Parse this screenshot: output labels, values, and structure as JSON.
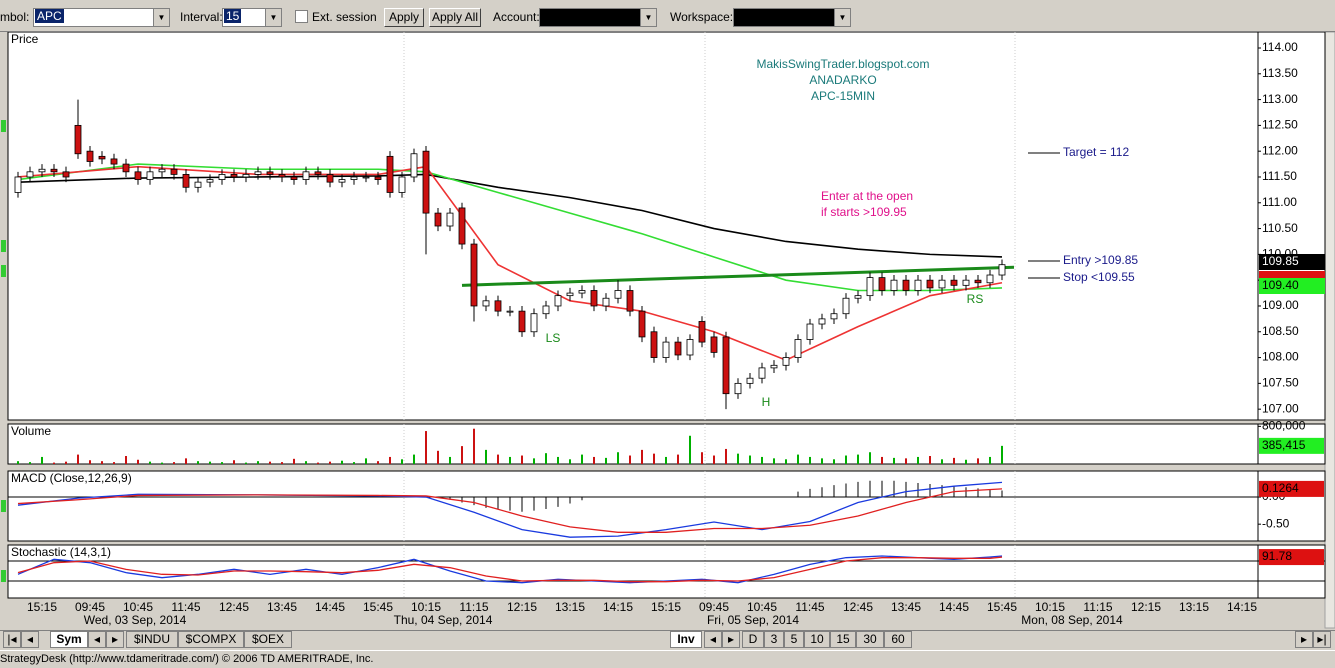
{
  "toolbar": {
    "symbol_label": "mbol:",
    "symbol": "APC",
    "interval_label": "Interval:",
    "interval": "15",
    "ext_session": "Ext. session",
    "apply": "Apply",
    "apply_all": "Apply All",
    "account_label": "Account:",
    "workspace_label": "Workspace:"
  },
  "chart_data": [
    {
      "type": "candlestick",
      "title": "Price",
      "open": [
        111.2,
        111.5,
        111.6,
        111.65,
        111.6,
        112.5,
        112.0,
        111.9,
        111.85,
        111.75,
        111.6,
        111.45,
        111.6,
        111.65,
        111.55,
        111.3,
        111.4,
        111.45,
        111.55,
        111.5,
        111.55,
        111.6,
        111.55,
        111.5,
        111.45,
        111.6,
        111.55,
        111.4,
        111.45,
        111.5,
        111.5,
        111.9,
        111.2,
        111.5,
        112.0,
        110.8,
        110.55,
        110.9,
        110.2,
        109.0,
        109.1,
        108.9,
        108.9,
        108.5,
        108.85,
        109.0,
        109.2,
        109.25,
        109.3,
        109.0,
        109.15,
        109.3,
        108.9,
        108.5,
        108.0,
        108.3,
        108.05,
        108.7,
        108.4,
        108.4,
        107.3,
        107.5,
        107.6,
        107.8,
        107.85,
        108.0,
        108.35,
        108.65,
        108.75,
        108.85,
        109.15,
        109.2,
        109.55,
        109.3,
        109.5,
        109.3,
        109.5,
        109.35,
        109.5,
        109.4,
        109.5,
        109.45,
        109.6
      ],
      "high": [
        111.6,
        111.7,
        111.75,
        111.75,
        111.7,
        113.0,
        112.1,
        112.0,
        111.95,
        111.85,
        111.7,
        111.7,
        111.75,
        111.75,
        111.65,
        111.5,
        111.55,
        111.65,
        111.65,
        111.65,
        111.7,
        111.7,
        111.65,
        111.6,
        111.7,
        111.7,
        111.65,
        111.55,
        111.6,
        111.6,
        111.6,
        112.0,
        111.6,
        112.05,
        112.1,
        110.9,
        110.9,
        111.0,
        110.3,
        109.2,
        109.2,
        109.0,
        109.0,
        108.95,
        109.1,
        109.3,
        109.35,
        109.4,
        109.4,
        109.25,
        109.5,
        109.4,
        109.0,
        108.6,
        108.4,
        108.4,
        108.45,
        108.8,
        108.5,
        108.5,
        107.6,
        107.7,
        107.9,
        107.95,
        108.1,
        108.45,
        108.75,
        108.85,
        108.95,
        109.25,
        109.3,
        109.65,
        109.65,
        109.6,
        109.6,
        109.6,
        109.6,
        109.6,
        109.6,
        109.6,
        109.6,
        109.7,
        109.9
      ],
      "low": [
        111.1,
        111.4,
        111.5,
        111.5,
        111.4,
        111.85,
        111.7,
        111.75,
        111.65,
        111.5,
        111.35,
        111.35,
        111.5,
        111.45,
        111.2,
        111.2,
        111.3,
        111.35,
        111.4,
        111.4,
        111.45,
        111.45,
        111.4,
        111.35,
        111.35,
        111.45,
        111.3,
        111.3,
        111.35,
        111.4,
        111.35,
        111.1,
        111.1,
        111.4,
        110.0,
        110.45,
        110.45,
        110.1,
        108.7,
        108.9,
        108.8,
        108.8,
        108.4,
        108.4,
        108.75,
        108.9,
        109.1,
        109.15,
        108.9,
        108.9,
        109.05,
        108.8,
        108.3,
        107.9,
        107.9,
        107.95,
        107.95,
        108.2,
        108.0,
        107.0,
        107.2,
        107.4,
        107.5,
        107.7,
        107.75,
        107.9,
        108.25,
        108.55,
        108.65,
        108.75,
        109.05,
        109.1,
        109.2,
        109.2,
        109.2,
        109.2,
        109.25,
        109.25,
        109.3,
        109.3,
        109.35,
        109.35,
        109.5
      ],
      "close": [
        111.5,
        111.6,
        111.65,
        111.6,
        111.5,
        111.95,
        111.8,
        111.85,
        111.75,
        111.6,
        111.45,
        111.6,
        111.65,
        111.55,
        111.3,
        111.4,
        111.45,
        111.55,
        111.5,
        111.55,
        111.6,
        111.55,
        111.5,
        111.45,
        111.6,
        111.55,
        111.4,
        111.45,
        111.5,
        111.5,
        111.45,
        111.2,
        111.5,
        111.95,
        110.8,
        110.55,
        110.8,
        110.2,
        109.0,
        109.1,
        108.9,
        108.9,
        108.5,
        108.85,
        109.0,
        109.2,
        109.25,
        109.3,
        109.0,
        109.15,
        109.3,
        108.9,
        108.4,
        108.0,
        108.3,
        108.05,
        108.35,
        108.3,
        108.1,
        107.3,
        107.5,
        107.6,
        107.8,
        107.85,
        108.0,
        108.35,
        108.65,
        108.75,
        108.85,
        109.15,
        109.2,
        109.55,
        109.3,
        109.5,
        109.3,
        109.5,
        109.35,
        109.5,
        109.4,
        109.5,
        109.45,
        109.6,
        109.8
      ],
      "up_color": "#ffffff",
      "down_color": "#cc1111",
      "overlays": [
        {
          "color": "#000000",
          "x": [
            0,
            10,
            20,
            30,
            34,
            40,
            46,
            52,
            58,
            64,
            70,
            76,
            82
          ],
          "values": [
            111.4,
            111.48,
            111.5,
            111.52,
            111.55,
            111.3,
            111.1,
            110.85,
            110.5,
            110.25,
            110.1,
            110.0,
            109.95
          ]
        },
        {
          "color": "#33dd33",
          "x": [
            0,
            10,
            20,
            30,
            34,
            40,
            46,
            52,
            58,
            64,
            70,
            76,
            82
          ],
          "values": [
            111.45,
            111.75,
            111.65,
            111.65,
            111.6,
            111.2,
            110.8,
            110.4,
            109.95,
            109.5,
            109.3,
            109.3,
            109.35
          ]
        },
        {
          "color": "#ee3333",
          "x": [
            0,
            10,
            20,
            30,
            34,
            40,
            46,
            52,
            58,
            64,
            70,
            76,
            82
          ],
          "values": [
            111.5,
            111.7,
            111.55,
            111.55,
            111.7,
            109.8,
            109.1,
            108.9,
            108.5,
            107.95,
            108.6,
            109.2,
            109.45
          ]
        }
      ],
      "neckline": {
        "color": "#1a8a1a",
        "x": [
          37,
          83
        ],
        "values": [
          109.4,
          109.75
        ]
      },
      "ylim": [
        106.79,
        114.31
      ],
      "yticks": [
        {
          "value": 107,
          "label": "107.00"
        },
        {
          "value": 107.5,
          "label": "107.50"
        },
        {
          "value": 108,
          "label": "108.00"
        },
        {
          "value": 108.5,
          "label": "108.50"
        },
        {
          "value": 109,
          "label": "109.00"
        },
        {
          "value": 109.5,
          "label": "109.50"
        },
        {
          "value": 110,
          "label": "110.00"
        },
        {
          "value": 110.5,
          "label": "110.50"
        },
        {
          "value": 111,
          "label": "111.00"
        },
        {
          "value": 111.5,
          "label": "111.50"
        },
        {
          "value": 112,
          "label": "112.00"
        },
        {
          "value": 112.5,
          "label": "112.50"
        },
        {
          "value": 113,
          "label": "113.00"
        },
        {
          "value": 113.5,
          "label": "113.50"
        },
        {
          "value": 114,
          "label": "114.00"
        }
      ],
      "annotations": {
        "blog": "MakisSwingTrader.blogspot.com",
        "company": "ANADARKO",
        "chart_id": "APC-15MIN",
        "enter_1": "Enter at the open",
        "enter_2": "if starts >109.95",
        "target": "Target = 112",
        "entry": "Entry >109.85",
        "stop": "Stop <109.55",
        "ls": "LS",
        "h": "H",
        "rs": "RS"
      },
      "price_labels": [
        "109.85",
        "109.40"
      ]
    },
    {
      "type": "volume",
      "title": "Volume",
      "values": [
        60000,
        40000,
        150000,
        30000,
        50000,
        200000,
        80000,
        60000,
        40000,
        170000,
        90000,
        50000,
        30000,
        40000,
        120000,
        60000,
        50000,
        40000,
        80000,
        30000,
        60000,
        50000,
        40000,
        110000,
        60000,
        30000,
        50000,
        70000,
        40000,
        120000,
        60000,
        150000,
        100000,
        200000,
        700000,
        280000,
        150000,
        380000,
        750000,
        300000,
        200000,
        150000,
        180000,
        120000,
        230000,
        150000,
        100000,
        200000,
        150000,
        130000,
        250000,
        180000,
        300000,
        220000,
        150000,
        200000,
        600000,
        250000,
        180000,
        320000,
        220000,
        180000,
        150000,
        120000,
        100000,
        200000,
        150000,
        120000,
        100000,
        180000,
        200000,
        250000,
        150000,
        130000,
        120000,
        150000,
        170000,
        100000,
        130000,
        90000,
        120000,
        150000,
        385415
      ],
      "ylim": [
        0,
        850000
      ],
      "yticks": [
        {
          "value": 800000,
          "label": "800,000"
        }
      ],
      "current_label": "385,415"
    },
    {
      "type": "macd",
      "title": "MACD (Close,12,26,9)",
      "series": [
        {
          "color": "#1a3adf",
          "x": [
            0,
            5,
            10,
            20,
            30,
            34,
            38,
            42,
            46,
            50,
            54,
            58,
            62,
            66,
            70,
            74,
            78,
            82
          ],
          "values": [
            -0.15,
            -0.02,
            0.05,
            0.04,
            0.02,
            0,
            -0.28,
            -0.6,
            -0.74,
            -0.72,
            -0.6,
            -0.46,
            -0.6,
            -0.45,
            -0.1,
            0.1,
            0.2,
            0.27
          ]
        },
        {
          "color": "#e02020",
          "x": [
            0,
            5,
            10,
            20,
            30,
            34,
            38,
            42,
            46,
            50,
            54,
            58,
            62,
            66,
            70,
            74,
            78,
            82
          ],
          "values": [
            -0.12,
            -0.05,
            0.03,
            0.04,
            0.03,
            0.02,
            -0.1,
            -0.35,
            -0.55,
            -0.65,
            -0.65,
            -0.58,
            -0.58,
            -0.52,
            -0.35,
            -0.1,
            0.1,
            0.15
          ]
        }
      ],
      "histogram_x": [
        36,
        37,
        38,
        39,
        40,
        41,
        42,
        43,
        44,
        45,
        46,
        47,
        65,
        66,
        67,
        68,
        69,
        70,
        71,
        72,
        73,
        74,
        75,
        76,
        77,
        78,
        79,
        80,
        81,
        82
      ],
      "histogram": [
        -0.05,
        -0.1,
        -0.15,
        -0.2,
        -0.22,
        -0.25,
        -0.27,
        -0.25,
        -0.22,
        -0.18,
        -0.12,
        -0.06,
        0.1,
        0.15,
        0.18,
        0.22,
        0.25,
        0.28,
        0.3,
        0.3,
        0.3,
        0.28,
        0.26,
        0.24,
        0.22,
        0.2,
        0.18,
        0.16,
        0.14,
        0.12
      ],
      "ylim": [
        -0.81,
        0.48
      ],
      "yticks": [
        {
          "value": 0,
          "label": "0.00"
        },
        {
          "value": -0.5,
          "label": "-0.50"
        }
      ],
      "current_label": "0.1264"
    },
    {
      "type": "stochastic",
      "title": "Stochastic (14,3,1)",
      "series": [
        {
          "color": "#1a3adf",
          "x": [
            0,
            3,
            6,
            9,
            12,
            15,
            18,
            21,
            24,
            27,
            30,
            33,
            36,
            39,
            42,
            45,
            48,
            51,
            54,
            57,
            60,
            63,
            66,
            69,
            72,
            75,
            78,
            81,
            82
          ],
          "values": [
            40,
            85,
            75,
            45,
            30,
            40,
            55,
            40,
            55,
            40,
            60,
            85,
            50,
            20,
            15,
            25,
            20,
            15,
            20,
            25,
            15,
            40,
            70,
            90,
            95,
            90,
            85,
            92,
            95
          ]
        },
        {
          "color": "#e02020",
          "x": [
            0,
            3,
            6,
            9,
            12,
            15,
            18,
            21,
            24,
            27,
            30,
            33,
            36,
            39,
            42,
            45,
            48,
            51,
            54,
            57,
            60,
            63,
            66,
            69,
            72,
            75,
            78,
            81,
            82
          ],
          "values": [
            45,
            75,
            80,
            55,
            40,
            38,
            50,
            50,
            48,
            45,
            52,
            70,
            60,
            35,
            20,
            22,
            22,
            18,
            18,
            22,
            20,
            30,
            55,
            80,
            90,
            90,
            88,
            88,
            91.78
          ]
        }
      ],
      "levels": [
        80,
        20
      ],
      "ylim": [
        -31,
        128
      ],
      "current_label": "91.78"
    }
  ],
  "x_axis": {
    "times": [
      "15:15",
      "09:45",
      "10:45",
      "11:45",
      "12:45",
      "13:45",
      "14:45",
      "15:45",
      "10:15",
      "11:15",
      "12:15",
      "13:15",
      "14:15",
      "15:15",
      "09:45",
      "10:45",
      "11:45",
      "12:45",
      "13:45",
      "14:45",
      "15:45",
      "10:15",
      "11:15",
      "12:15",
      "13:15",
      "14:15"
    ],
    "dates": [
      "Wed, 03 Sep, 2014",
      "Thu, 04 Sep, 2014",
      "Fri, 05 Sep, 2014",
      "Mon, 08 Sep, 2014"
    ]
  },
  "tabs": {
    "sym": "Sym",
    "symbols": [
      "$INDU",
      "$COMPX",
      "$OEX"
    ],
    "inv": "Inv",
    "periods": [
      "D",
      "3",
      "5",
      "10",
      "15",
      "30",
      "60"
    ]
  },
  "status": "StrategyDesk (http://www.tdameritrade.com/) © 2006 TD AMERITRADE, Inc."
}
